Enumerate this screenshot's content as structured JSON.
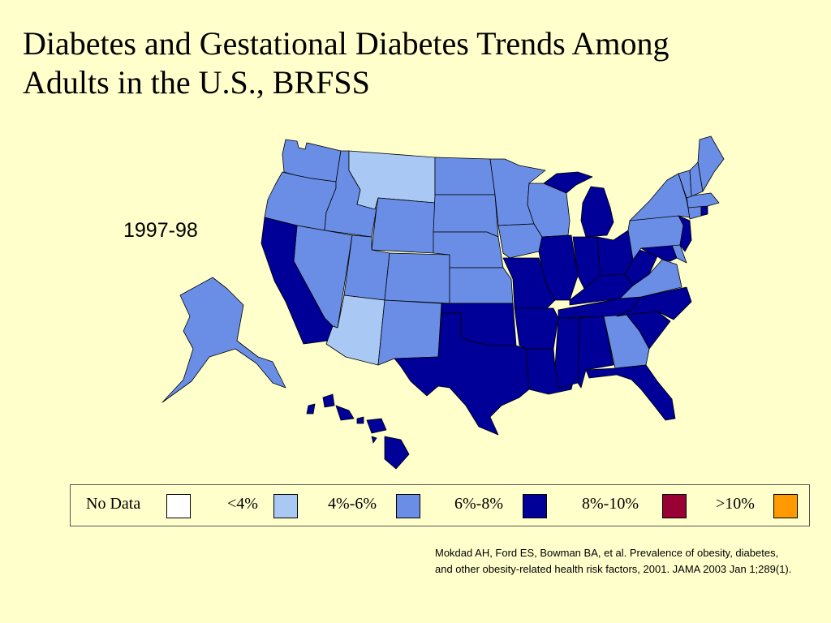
{
  "title_line1": "Diabetes and Gestational Diabetes Trends Among",
  "title_line2": "Adults in the U.S., BRFSS",
  "year": "1997-98",
  "legend": [
    {
      "label": "No Data",
      "color": "#FFFFFF"
    },
    {
      "label": "<4%",
      "color": "#A9C8F3"
    },
    {
      "label": "4%-6%",
      "color": "#6A8EE6"
    },
    {
      "label": "6%-8%",
      "color": "#000099"
    },
    {
      "label": "8%-10%",
      "color": "#990033"
    },
    {
      "label": ">10%",
      "color": "#FF9900"
    }
  ],
  "states": {
    "WA": "4%-6%",
    "OR": "4%-6%",
    "ID": "4%-6%",
    "MT": "<4%",
    "WY": "4%-6%",
    "NV": "4%-6%",
    "CA": "6%-8%",
    "UT": "4%-6%",
    "AZ": "<4%",
    "CO": "4%-6%",
    "NM": "4%-6%",
    "ND": "4%-6%",
    "SD": "4%-6%",
    "NE": "4%-6%",
    "KS": "4%-6%",
    "OK": "6%-8%",
    "TX": "6%-8%",
    "MN": "4%-6%",
    "IA": "4%-6%",
    "MO": "6%-8%",
    "AR": "6%-8%",
    "LA": "6%-8%",
    "WI": "4%-6%",
    "IL": "6%-8%",
    "MI": "6%-8%",
    "IN": "6%-8%",
    "OH": "6%-8%",
    "KY": "6%-8%",
    "TN": "6%-8%",
    "MS": "6%-8%",
    "AL": "6%-8%",
    "GA": "4%-6%",
    "FL": "6%-8%",
    "SC": "6%-8%",
    "NC": "6%-8%",
    "VA": "4%-6%",
    "WV": "6%-8%",
    "MD": "6%-8%",
    "DE": "4%-6%",
    "NJ": "6%-8%",
    "PA": "4%-6%",
    "NY": "4%-6%",
    "CT": "4%-6%",
    "RI": "6%-8%",
    "MA": "4%-6%",
    "VT": "4%-6%",
    "NH": "4%-6%",
    "ME": "4%-6%",
    "AK": "4%-6%",
    "HI": "6%-8%"
  },
  "citation_line1": "Mokdad AH, Ford ES, Bowman BA, et al. Prevalence of obesity, diabetes,",
  "citation_line2": "and other obesity-related health risk factors, 2001. JAMA 2003 Jan 1;289(1)."
}
